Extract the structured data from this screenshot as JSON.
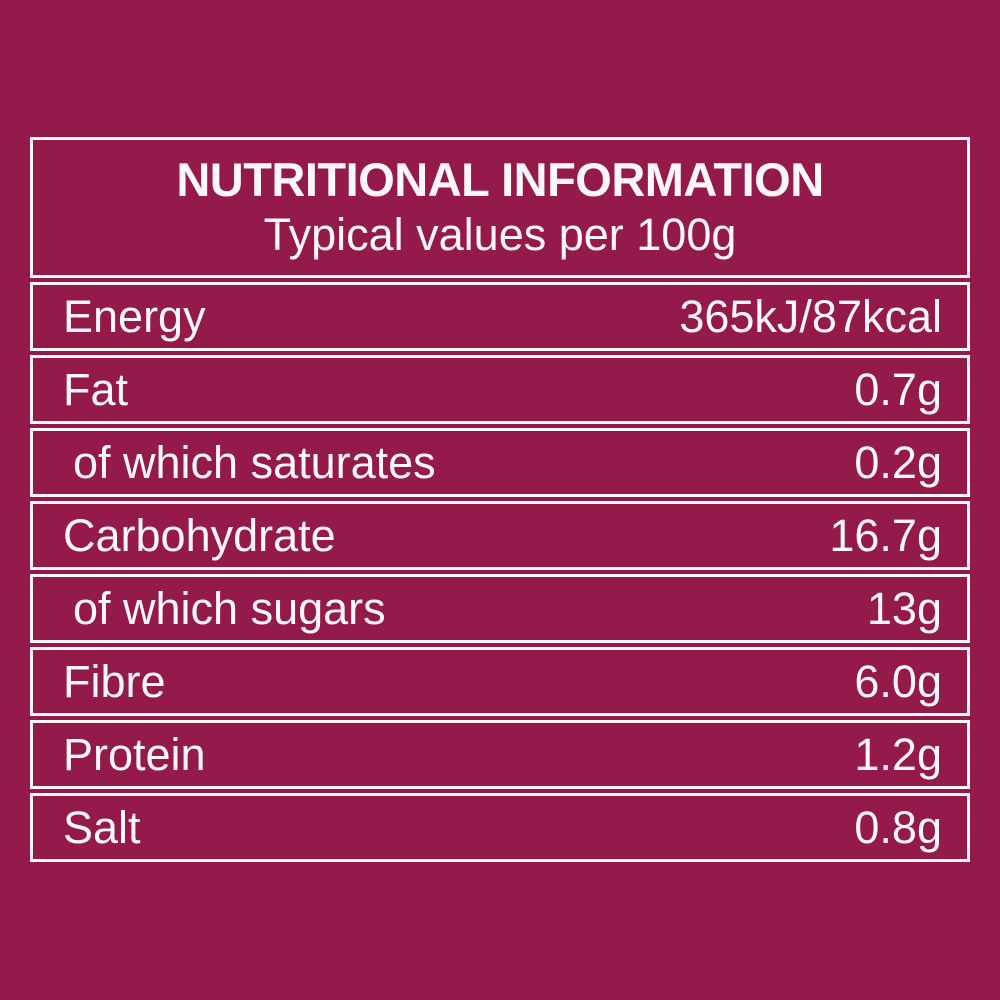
{
  "colors": {
    "background": "#941a4b",
    "border": "#fbf7f8",
    "text": "#fbf7f8"
  },
  "table": {
    "title": "NUTRITIONAL INFORMATION",
    "subtitle": "Typical values per 100g",
    "rows": [
      {
        "label": "Energy",
        "value": "365kJ/87kcal",
        "indent": false
      },
      {
        "label": "Fat",
        "value": "0.7g",
        "indent": false
      },
      {
        "label": "of which saturates",
        "value": "0.2g",
        "indent": true
      },
      {
        "label": "Carbohydrate",
        "value": "16.7g",
        "indent": false
      },
      {
        "label": "of which sugars",
        "value": "13g",
        "indent": true
      },
      {
        "label": "Fibre",
        "value": "6.0g",
        "indent": false
      },
      {
        "label": "Protein",
        "value": "1.2g",
        "indent": false
      },
      {
        "label": "Salt",
        "value": "0.8g",
        "indent": false
      }
    ]
  }
}
